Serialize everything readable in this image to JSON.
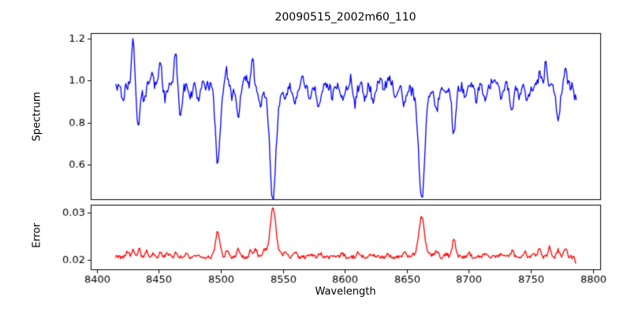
{
  "chart": {
    "title": "20090515_2002m60_110",
    "xlabel": "Wavelength",
    "ylabel_top": "Spectrum",
    "ylabel_bottom": "Error",
    "background_color": "#ffffff",
    "spine_color": "#000000",
    "text_color": "#000000"
  },
  "chart_data": [
    {
      "type": "line",
      "name": "spectrum",
      "ylabel": "Spectrum",
      "color": "#0000ff",
      "xlim": [
        8395,
        8806
      ],
      "ylim": [
        0.435,
        1.226
      ],
      "yticks": [
        0.6,
        0.8,
        1.0,
        1.2
      ],
      "ytick_labels": [
        "0.6",
        "0.8",
        "1.0",
        "1.2"
      ],
      "x_range": [
        8415,
        8787
      ],
      "sample_step": 0.7,
      "baseline": 0.975,
      "noise_amp": 0.024,
      "seed": 20090515,
      "features_legend": "each feature = [center_wavelength, amplitude, gaussian_width]; negative = absorption dip, positive = emission spike",
      "features": [
        [
          8421,
          -0.055,
          1.2
        ],
        [
          8429,
          0.225,
          1.0
        ],
        [
          8433.5,
          -0.205,
          1.2
        ],
        [
          8438,
          -0.07,
          1.1
        ],
        [
          8444,
          0.045,
          1.3
        ],
        [
          8451,
          0.115,
          1.1
        ],
        [
          8455,
          -0.06,
          1.1
        ],
        [
          8463.5,
          0.17,
          1.0
        ],
        [
          8467.5,
          -0.155,
          1.2
        ],
        [
          8476,
          -0.05,
          1.3
        ],
        [
          8482,
          -0.07,
          1.2
        ],
        [
          8497.5,
          -0.38,
          1.9
        ],
        [
          8504,
          0.08,
          1.1
        ],
        [
          8509,
          -0.05,
          1.2
        ],
        [
          8514,
          -0.14,
          1.3
        ],
        [
          8520,
          0.04,
          1.2
        ],
        [
          8525.5,
          0.155,
          1.0
        ],
        [
          8532,
          -0.08,
          1.3
        ],
        [
          8542,
          -0.495,
          2.3
        ],
        [
          8542,
          -0.05,
          7
        ],
        [
          8552,
          -0.05,
          1.4
        ],
        [
          8560,
          -0.085,
          1.4
        ],
        [
          8566,
          0.03,
          1.3
        ],
        [
          8572,
          -0.06,
          1.4
        ],
        [
          8579,
          -0.105,
          1.6
        ],
        [
          8590,
          -0.05,
          1.4
        ],
        [
          8598,
          -0.065,
          1.4
        ],
        [
          8605,
          0.04,
          1.3
        ],
        [
          8608,
          -0.09,
          1.3
        ],
        [
          8616,
          -0.06,
          1.2
        ],
        [
          8623,
          -0.075,
          1.4
        ],
        [
          8628,
          0.03,
          1.3
        ],
        [
          8636,
          0.04,
          1.3
        ],
        [
          8641,
          -0.055,
          1.3
        ],
        [
          8648,
          -0.08,
          1.4
        ],
        [
          8662,
          -0.495,
          2.3
        ],
        [
          8662,
          -0.05,
          7
        ],
        [
          8674,
          -0.105,
          1.4
        ],
        [
          8681,
          -0.05,
          1.2
        ],
        [
          8688,
          -0.225,
          1.6
        ],
        [
          8697,
          -0.055,
          1.3
        ],
        [
          8706,
          -0.06,
          1.3
        ],
        [
          8713,
          -0.07,
          1.3
        ],
        [
          8720,
          0.035,
          1.2
        ],
        [
          8726,
          -0.06,
          1.3
        ],
        [
          8735,
          -0.12,
          1.5
        ],
        [
          8741,
          -0.05,
          1.2
        ],
        [
          8747,
          -0.085,
          1.3
        ],
        [
          8757,
          0.05,
          1.2
        ],
        [
          8762,
          0.1,
          1.1
        ],
        [
          8772,
          -0.165,
          1.4
        ],
        [
          8778,
          0.09,
          1.1
        ],
        [
          8786,
          -0.06,
          1.2
        ]
      ]
    },
    {
      "type": "line",
      "name": "error",
      "ylabel": "Error",
      "xlabel": "Wavelength",
      "color": "#ff0000",
      "xlim": [
        8395,
        8806
      ],
      "ylim": [
        0.018,
        0.0317
      ],
      "yticks": [
        0.02,
        0.03
      ],
      "ytick_labels": [
        "0.02",
        "0.03"
      ],
      "xticks": [
        8400,
        8450,
        8500,
        8550,
        8600,
        8650,
        8700,
        8750,
        8800
      ],
      "xtick_labels": [
        "8400",
        "8450",
        "8500",
        "8550",
        "8600",
        "8650",
        "8700",
        "8750",
        "8800"
      ],
      "x_range": [
        8415,
        8787
      ],
      "sample_step": 0.7,
      "baseline": 0.0206,
      "noise_amp": 0.00038,
      "seed": 2002,
      "features": [
        [
          8425,
          0.0012,
          1.2
        ],
        [
          8429.5,
          0.0016,
          1.0
        ],
        [
          8434,
          0.0019,
          1.1
        ],
        [
          8440,
          0.0013,
          1.1
        ],
        [
          8446,
          0.0008,
          1.2
        ],
        [
          8451,
          0.0009,
          1.1
        ],
        [
          8457,
          0.0007,
          1.2
        ],
        [
          8464,
          0.001,
          1.0
        ],
        [
          8472,
          0.0007,
          1.3
        ],
        [
          8482,
          0.0007,
          1.2
        ],
        [
          8497.5,
          0.0053,
          1.8
        ],
        [
          8505,
          0.0013,
          1.1
        ],
        [
          8514,
          0.0017,
          1.2
        ],
        [
          8524,
          0.0015,
          1.1
        ],
        [
          8528,
          0.0016,
          1.1
        ],
        [
          8535,
          0.0008,
          1.2
        ],
        [
          8542,
          0.0093,
          2.1
        ],
        [
          8542,
          0.0013,
          6
        ],
        [
          8553,
          0.0008,
          1.3
        ],
        [
          8560,
          0.0012,
          1.3
        ],
        [
          8572,
          0.0007,
          1.3
        ],
        [
          8580,
          0.0008,
          1.3
        ],
        [
          8598,
          0.0007,
          1.3
        ],
        [
          8611,
          0.0009,
          1.4
        ],
        [
          8622,
          0.0007,
          1.3
        ],
        [
          8635,
          0.0006,
          1.3
        ],
        [
          8648,
          0.0008,
          1.3
        ],
        [
          8662,
          0.0075,
          2.1
        ],
        [
          8662,
          0.0011,
          6
        ],
        [
          8674,
          0.0013,
          1.2
        ],
        [
          8682,
          0.0007,
          1.2
        ],
        [
          8688,
          0.0036,
          1.4
        ],
        [
          8700,
          0.0008,
          1.3
        ],
        [
          8713,
          0.0008,
          1.3
        ],
        [
          8726,
          0.0008,
          1.3
        ],
        [
          8735,
          0.0013,
          1.3
        ],
        [
          8745,
          0.001,
          1.2
        ],
        [
          8752,
          0.0009,
          1.2
        ],
        [
          8757,
          0.0017,
          1.2
        ],
        [
          8765,
          0.0021,
          1.2
        ],
        [
          8772,
          0.0015,
          1.1
        ],
        [
          8778,
          0.0018,
          1.2
        ],
        [
          8786.5,
          -0.0011,
          0.9
        ]
      ]
    }
  ]
}
